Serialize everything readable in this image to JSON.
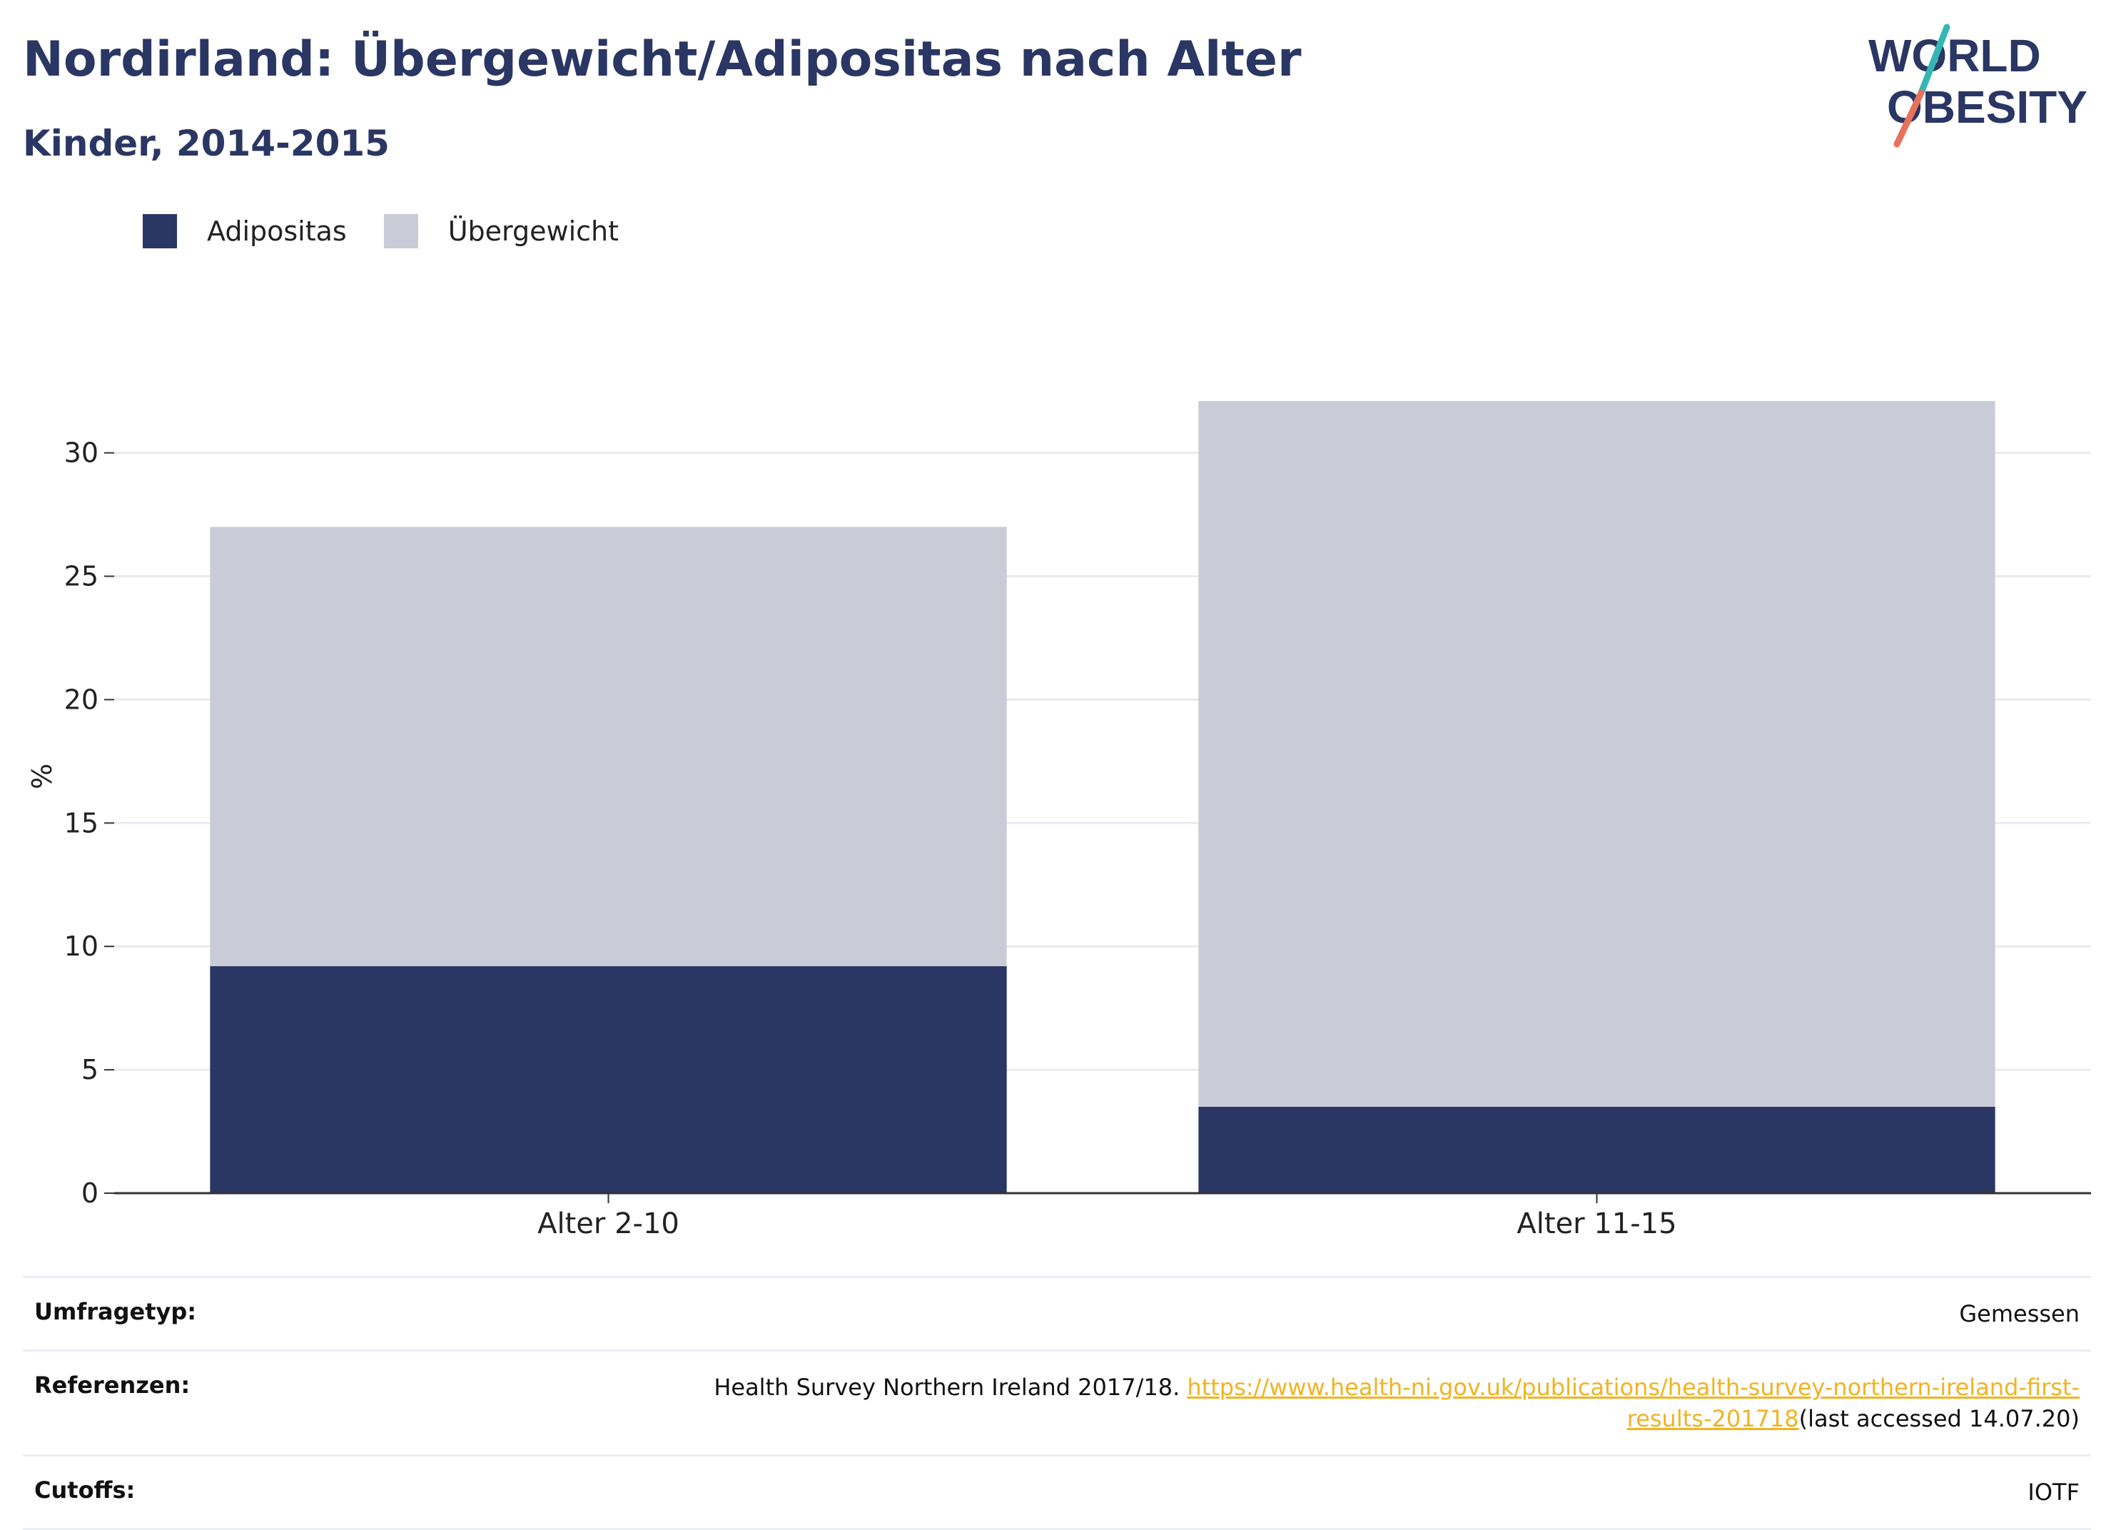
{
  "header": {
    "title": "Nordirland: Übergewicht/Adipositas nach Alter",
    "subtitle": "Kinder, 2014-2015"
  },
  "logo": {
    "line1": "WORLD",
    "line2": "OBESITY",
    "colors": {
      "text": "#2a3663",
      "slash_top": "#35b6b4",
      "slash_bottom": "#e8715c"
    }
  },
  "legend": {
    "items": [
      {
        "label": "Adipositas",
        "color": "#2a3663"
      },
      {
        "label": "Übergewicht",
        "color": "#c9cbd6"
      }
    ]
  },
  "chart_data": {
    "type": "bar",
    "stacked": true,
    "categories": [
      "Alter 2-10",
      "Alter 11-15"
    ],
    "series": [
      {
        "name": "Adipositas",
        "values": [
          9.2,
          3.5
        ],
        "color": "#2a3663"
      },
      {
        "name": "Übergewicht",
        "values": [
          17.8,
          28.6
        ],
        "color": "#c9cbd6"
      }
    ],
    "ylabel": "%",
    "ylim": [
      0,
      32.1
    ],
    "yticks": [
      0,
      5,
      10,
      15,
      20,
      25,
      30
    ],
    "grid": true,
    "legend_position": "top-left"
  },
  "info": {
    "survey_type": {
      "label": "Umfragetyp:",
      "value": "Gemessen"
    },
    "references": {
      "label": "Referenzen:",
      "text": "Health Survey Northern Ireland 2017/18. ",
      "link": "https://www.health-ni.gov.uk/publications/health-survey-northern-ireland-first-results-201718",
      "suffix": "(last accessed 14.07.20)"
    },
    "cutoffs": {
      "label": "Cutoffs:",
      "value": "IOTF"
    }
  }
}
